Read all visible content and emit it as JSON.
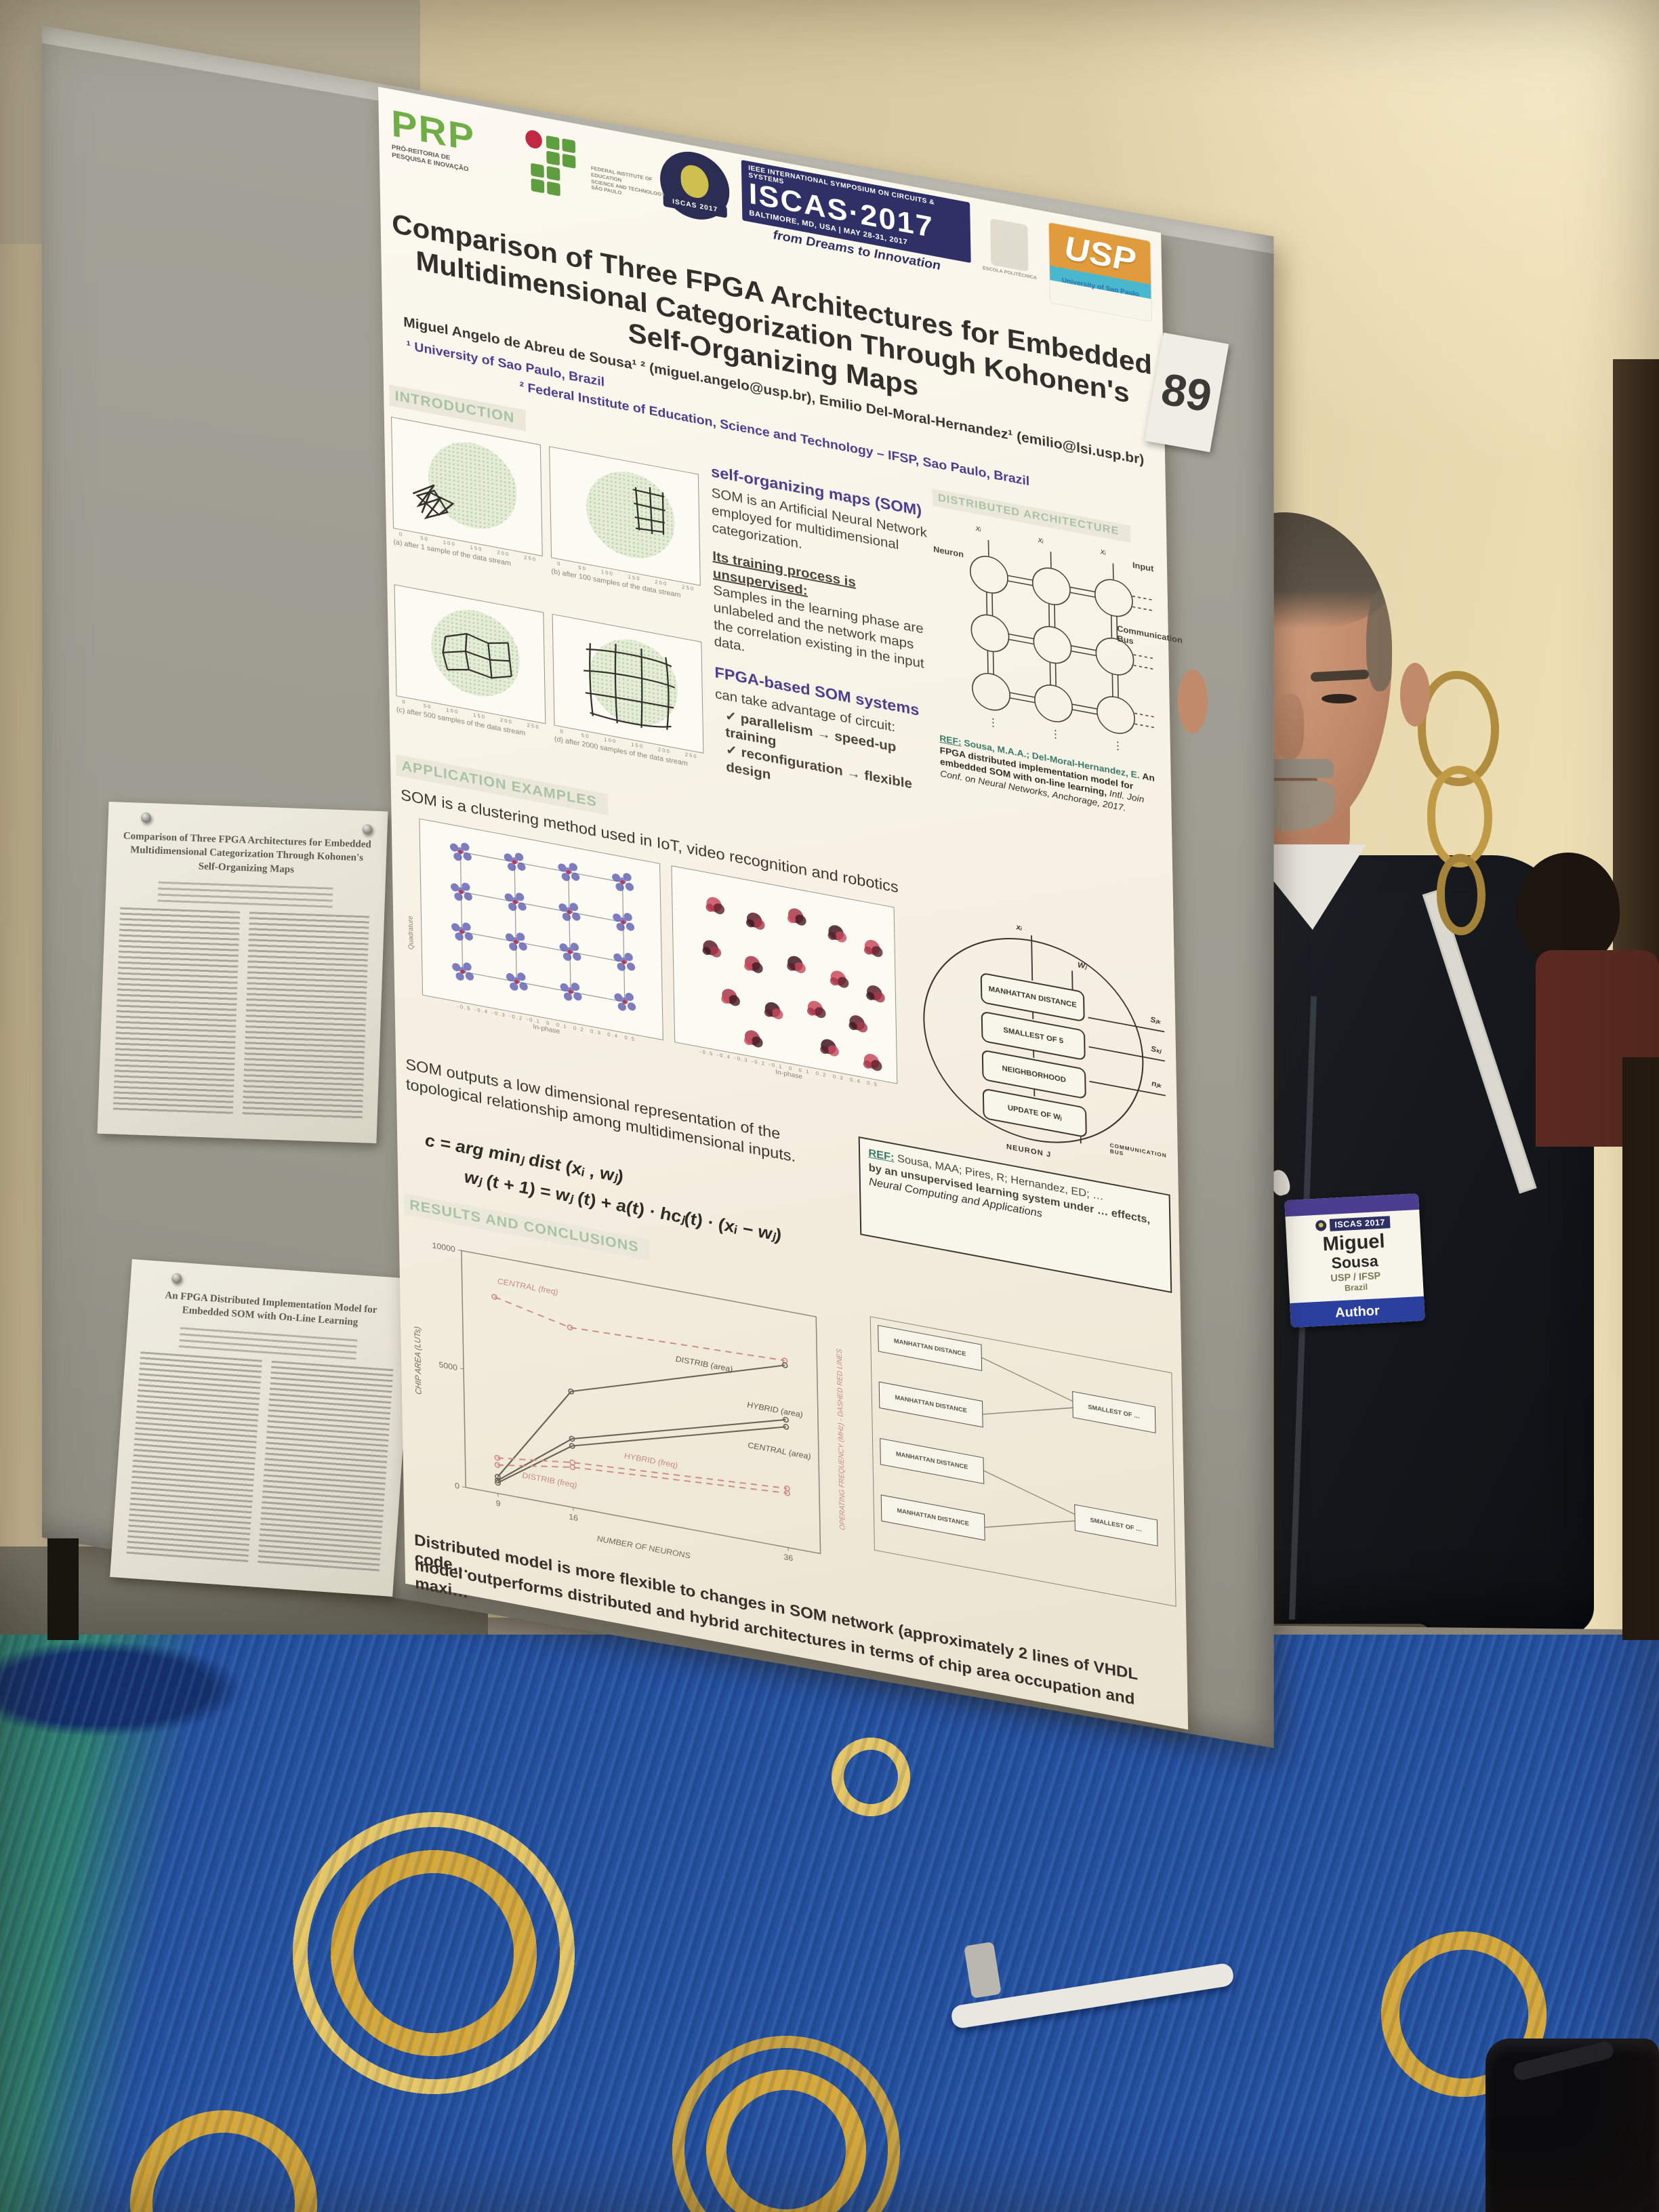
{
  "board": {
    "poster_number": "89",
    "paper1_title": "Comparison of Three FPGA Architectures for Embedded Multidimensional Categorization Through Kohonen's Self-Organizing Maps",
    "paper2_title": "An FPGA Distributed Implementation Model for Embedded SOM with On-Line Learning"
  },
  "poster": {
    "logos": {
      "prp": "PRP",
      "prp_sub1": "PRÓ-REITORIA DE",
      "prp_sub2": "PESQUISA E INOVAÇÃO",
      "if_sub1": "FEDERAL INSTITUTE OF EDUCATION",
      "if_sub2": "SCIENCE AND TECHNOLOGY",
      "if_sub3": "SÃO PAULO",
      "iscas_gear": "ISCAS 2017",
      "iscas_top": "IEEE INTERNATIONAL SYMPOSIUM ON CIRCUITS & SYSTEMS",
      "iscas_main": "ISCAS·2017",
      "iscas_loc": "BALTIMORE, MD, USA | MAY 28-31, 2017",
      "iscas_slogan": "from Dreams to Innovation",
      "poli": "ESCOLA POLITÉCNICA",
      "usp": "USP",
      "usp_sub": "University of Sao Paulo"
    },
    "title_line1": "Comparison of Three FPGA Architectures for Embedded",
    "title_line2": "Multidimensional Categorization Through Kohonen's",
    "title_line3": "Self-Organizing Maps",
    "authors": "Miguel Angelo de Abreu de Sousa¹ ² (miguel.angelo@usp.br),    Emilio Del-Moral-Hernandez¹ (emilio@lsi.usp.br)",
    "affiliation1": "¹ University of Sao Paulo, Brazil",
    "affiliation2": "² Federal Institute of Education, Science and Technology – IFSP, Sao Paulo, Brazil",
    "intro": {
      "heading": "INTRODUCTION",
      "caption_a": "(a) after 1 sample of the data stream",
      "caption_b": "(b) after 100 samples of the data stream",
      "caption_c": "(c) after 500 samples of the data stream",
      "caption_d": "(d) after 2000 samples of the data stream",
      "axis_ticks": "0      50     100     150     200     250",
      "som_heading": "self-organizing maps (SOM)",
      "som_text": "SOM is an Artificial Neural Network employed for multidimensional categorization.",
      "training_heading": "Its training process is unsupervised:",
      "training_text": "Samples in the learning phase are unlabeled and the network maps the correlation existing in the input data.",
      "fpga_heading": "FPGA-based SOM systems",
      "fpga_lead": "can take advantage of circuit:",
      "bullet1": "✓ parallelism → speed-up training",
      "bullet2": "✓ reconfiguration → flexible design"
    },
    "architecture": {
      "heading": "DISTRIBUTED ARCHITECTURE",
      "neuron_label": "Neuron",
      "input_label": "Input",
      "bus_label": "Communication Bus",
      "x_label": "xᵢ",
      "dots": "⋮",
      "ref_label": "REF:",
      "ref_authors": "Sousa, M.A.A.; Del-Moral-Hernandez, E.",
      "ref_title": "An FPGA distributed implementation model for embedded SOM with on-line learning,",
      "ref_venue": "Intl. Join Conf. on Neural Networks, Anchorage, 2017."
    },
    "applications": {
      "heading": "APPLICATION EXAMPLES",
      "lead": "SOM is a clustering method used in IoT, video recognition and robotics",
      "xlabel": "In-phase",
      "ylabel": "Quadrature",
      "xticks": "-0.5 -0.4 -0.3 -0.2 -0.1  0  0.1  0.2  0.3  0.4  0.5",
      "blocks": [
        "MANHATTAN DISTANCE",
        "SMALLEST OF 5",
        "NEIGHBORHOOD",
        "UPDATE OF Wⱼ"
      ],
      "neuron_caption": "NEURON J",
      "sig_x": "xᵢ",
      "sig_w": "Wⱼ",
      "sig_sjk": "Sⱼₖ",
      "sig_skj": "Sₖⱼ",
      "sig_njk": "nⱼₖ",
      "bus_caption": "COMMUNICATION BUS",
      "outputs_text": "SOM outputs a low dimensional representation of the topological relationship among multidimensional inputs.",
      "formula1": "c = arg minⱼ dist (xᵢ , wⱼ)",
      "formula2": "wⱼ (t + 1) = wⱼ (t) + a(t) · hcⱼ(t) · (xᵢ − wⱼ)",
      "ref2_label": "REF:",
      "ref2_line1": "Sousa, MAA; Pires, R; Hernandez, ED; …",
      "ref2_line2": "by an unsupervised learning system under … effects,",
      "ref2_venue": "Neural Computing and Applications"
    },
    "results": {
      "heading": "RESULTS AND CONCLUSIONS",
      "diagram_blocks": [
        "MANHATTAN DISTANCE",
        "MANHATTAN DISTANCE",
        "MANHATTAN DISTANCE",
        "MANHATTAN DISTANCE",
        "SMALLEST OF …",
        "SMALLEST OF …"
      ],
      "conclusion1": "Distributed model is more flexible to changes in SOM network (approximately 2 lines of VHDL code…",
      "conclusion2": "model outperforms distributed and hybrid architectures in terms of chip area occupation and maxi…"
    }
  },
  "chart_data": {
    "type": "line",
    "x": [
      9,
      16,
      36
    ],
    "xlabel": "NUMBER OF NEURONS",
    "ylabel": "CHIP AREA (LUTs)",
    "ylabel_right": "OPERATING FREQUENCY (MHz) - DASHED RED LINES",
    "ylim_left": [
      0,
      10000
    ],
    "ylim_right": [
      0,
      100
    ],
    "yticks_left": [
      10000,
      5000,
      0
    ],
    "grid": false,
    "legend_position": "inline-labels",
    "series": [
      {
        "name": "CENTRAL (freq)",
        "axis": "right",
        "style": "dashed",
        "values": [
          83,
          76,
          79
        ]
      },
      {
        "name": "DISTRIB (area)",
        "axis": "left",
        "style": "solid",
        "values": [
          700,
          4900,
          7700
        ]
      },
      {
        "name": "HYBRID (area)",
        "axis": "left",
        "style": "solid",
        "values": [
          550,
          2900,
          5400
        ]
      },
      {
        "name": "CENTRAL (area)",
        "axis": "left",
        "style": "solid",
        "values": [
          450,
          2600,
          5100
        ]
      },
      {
        "name": "HYBRID (freq)",
        "axis": "right",
        "style": "dashed",
        "values": [
          15,
          19,
          25
        ]
      },
      {
        "name": "DISTRIB (freq)",
        "axis": "right",
        "style": "dashed",
        "values": [
          12,
          17,
          23
        ]
      }
    ]
  },
  "badge": {
    "logo": "ISCAS 2017",
    "first_name": "Miguel",
    "last_name": "Sousa",
    "affiliation": "USP / IFSP",
    "country": "Brazil",
    "role": "Author"
  }
}
